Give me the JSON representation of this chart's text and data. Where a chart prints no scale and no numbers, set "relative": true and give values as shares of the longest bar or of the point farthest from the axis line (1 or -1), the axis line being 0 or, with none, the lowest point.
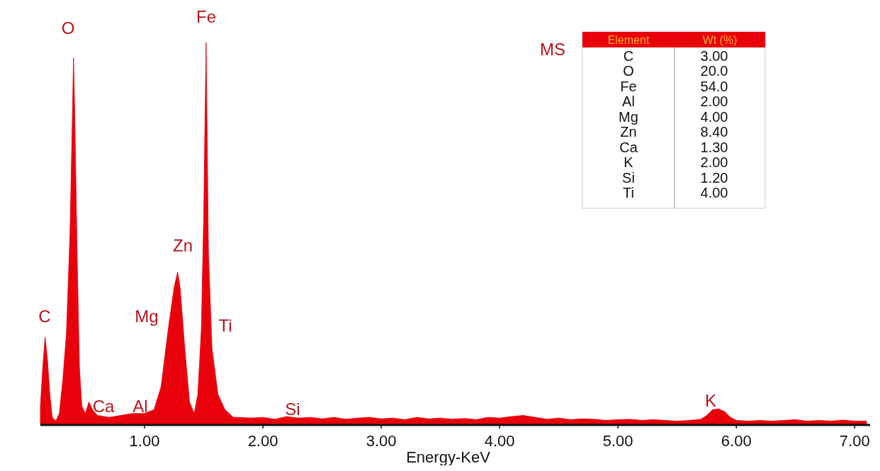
{
  "chart_data": [
    {
      "type": "area",
      "relative": true,
      "color": "#e8000b",
      "xlabel": "Energy-KeV",
      "tick_labels": "x",
      "xlim": [
        0.12,
        7.13
      ],
      "xticks": [
        {
          "value": 1,
          "label": "1.00"
        },
        {
          "value": 2,
          "label": "2.00"
        },
        {
          "value": 3,
          "label": "3.00"
        },
        {
          "value": 4,
          "label": "4.00"
        },
        {
          "value": 5,
          "label": "5.00"
        },
        {
          "value": 6,
          "label": "6.00"
        },
        {
          "value": 7,
          "label": "7.00"
        }
      ],
      "x": [
        0.12,
        0.14,
        0.16,
        0.18,
        0.2,
        0.22,
        0.25,
        0.28,
        0.31,
        0.34,
        0.37,
        0.39,
        0.4,
        0.41,
        0.43,
        0.45,
        0.47,
        0.5,
        0.53,
        0.56,
        0.6,
        0.7,
        0.8,
        0.9,
        1.0,
        1.08,
        1.14,
        1.2,
        1.25,
        1.28,
        1.3,
        1.34,
        1.38,
        1.42,
        1.45,
        1.48,
        1.5,
        1.52,
        1.54,
        1.57,
        1.62,
        1.68,
        1.75,
        1.8,
        1.9,
        2.0,
        2.1,
        2.2,
        2.3,
        2.4,
        2.5,
        2.6,
        2.7,
        2.8,
        2.9,
        3.0,
        3.1,
        3.2,
        3.3,
        3.4,
        3.5,
        3.6,
        3.7,
        3.8,
        3.9,
        4.0,
        4.1,
        4.2,
        4.3,
        4.4,
        4.5,
        4.6,
        4.7,
        4.8,
        4.9,
        5.0,
        5.1,
        5.2,
        5.3,
        5.4,
        5.5,
        5.6,
        5.7,
        5.75,
        5.8,
        5.85,
        5.9,
        5.95,
        6.0,
        6.1,
        6.2,
        6.3,
        6.4,
        6.5,
        6.6,
        6.7,
        6.8,
        6.9,
        7.0,
        7.1
      ],
      "values": [
        0.05,
        0.15,
        0.23,
        0.17,
        0.08,
        0.02,
        0.01,
        0.03,
        0.12,
        0.24,
        0.5,
        0.8,
        0.96,
        0.82,
        0.45,
        0.15,
        0.05,
        0.03,
        0.06,
        0.04,
        0.025,
        0.02,
        0.025,
        0.03,
        0.03,
        0.04,
        0.1,
        0.25,
        0.36,
        0.4,
        0.36,
        0.2,
        0.06,
        0.03,
        0.08,
        0.25,
        0.55,
        1.0,
        0.45,
        0.2,
        0.08,
        0.04,
        0.02,
        0.02,
        0.018,
        0.02,
        0.015,
        0.022,
        0.018,
        0.02,
        0.016,
        0.02,
        0.015,
        0.018,
        0.02,
        0.016,
        0.018,
        0.014,
        0.02,
        0.016,
        0.018,
        0.015,
        0.017,
        0.014,
        0.02,
        0.018,
        0.022,
        0.025,
        0.02,
        0.015,
        0.018,
        0.014,
        0.016,
        0.015,
        0.012,
        0.014,
        0.015,
        0.012,
        0.014,
        0.012,
        0.01,
        0.012,
        0.015,
        0.025,
        0.04,
        0.042,
        0.035,
        0.02,
        0.012,
        0.01,
        0.012,
        0.01,
        0.012,
        0.014,
        0.01,
        0.012,
        0.01,
        0.013,
        0.01,
        0.01
      ],
      "annotations": [
        "C",
        "O",
        "Fe",
        "Zn",
        "Mg",
        "Ti",
        "Ca",
        "Al",
        "Si",
        "K",
        "MS"
      ]
    },
    {
      "type": "other",
      "annotations": [
        "Element",
        "Wt (%)"
      ],
      "categories": [
        "C",
        "O",
        "Fe",
        "Al",
        "Mg",
        "Zn",
        "Ca",
        "K",
        "Si",
        "Ti"
      ],
      "values": [
        3.0,
        20.0,
        54.0,
        2.0,
        4.0,
        8.4,
        1.3,
        2.0,
        1.2,
        4.0
      ],
      "value_labels": [
        "3.00",
        "20.0",
        "54.0",
        "2.00",
        "4.00",
        "8.40",
        "1.30",
        "2.00",
        "1.20",
        "4.00"
      ]
    }
  ]
}
